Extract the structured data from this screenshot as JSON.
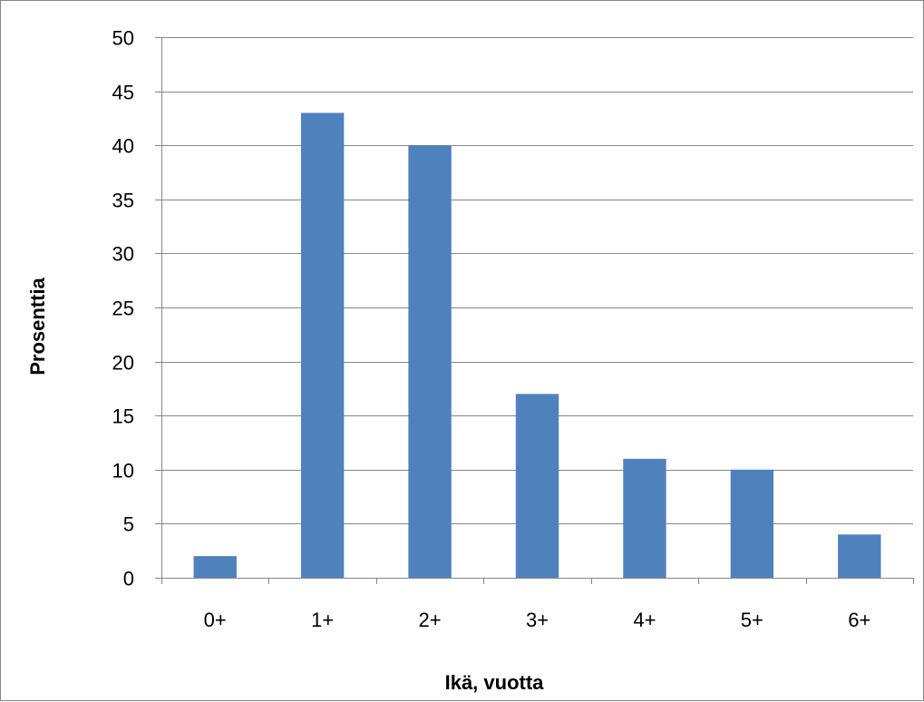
{
  "chart_data": {
    "type": "bar",
    "categories": [
      "0+",
      "1+",
      "2+",
      "3+",
      "4+",
      "5+",
      "6+"
    ],
    "series": [
      {
        "values": [
          2,
          43,
          40,
          17,
          11,
          10,
          4
        ]
      }
    ],
    "xlabel": "Ikä, vuotta",
    "ylabel": "Prosenttia",
    "ylim": [
      0,
      50
    ],
    "yticks": [
      0,
      5,
      10,
      15,
      20,
      25,
      30,
      35,
      40,
      45,
      50
    ],
    "grid": "horizontal",
    "legend": "none",
    "colors": {
      "bar": "#4F81BD",
      "gridline": "#868686",
      "axis": "#868686",
      "frame": "#868686"
    }
  }
}
